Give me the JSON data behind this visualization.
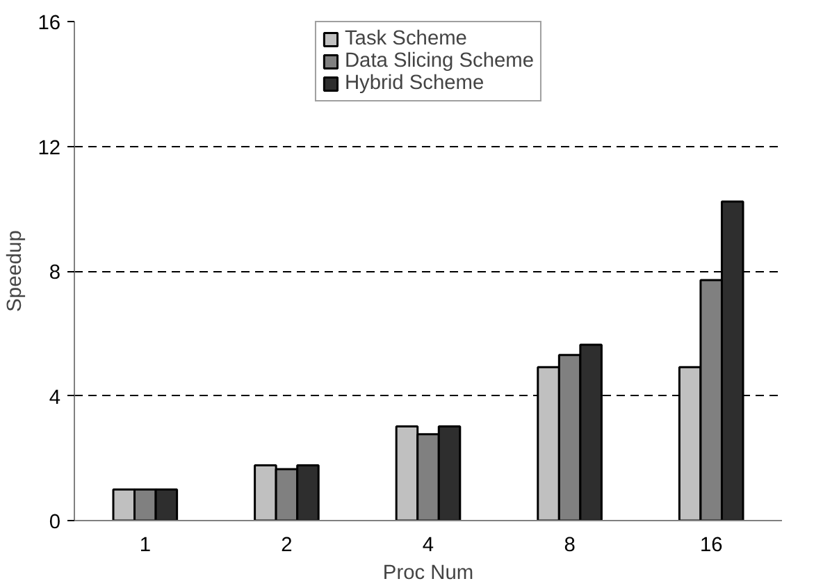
{
  "chart_data": {
    "type": "bar",
    "xlabel": "Proc Num",
    "ylabel": "Speedup",
    "categories": [
      "1",
      "2",
      "4",
      "8",
      "16"
    ],
    "series": [
      {
        "name": "Task Scheme",
        "color": "#c0c0c0",
        "values": [
          1.0,
          1.77,
          3.02,
          4.92,
          4.92
        ]
      },
      {
        "name": "Data Slicing Scheme",
        "color": "#808080",
        "values": [
          1.0,
          1.65,
          2.77,
          5.31,
          7.71
        ]
      },
      {
        "name": "Hybrid Scheme",
        "color": "#2e2e2e",
        "values": [
          1.0,
          1.77,
          3.02,
          5.64,
          10.23
        ]
      }
    ],
    "ylim": [
      0,
      16
    ],
    "yticks": [
      0,
      4,
      8,
      12,
      16
    ],
    "grid": "y",
    "legend": "top"
  }
}
